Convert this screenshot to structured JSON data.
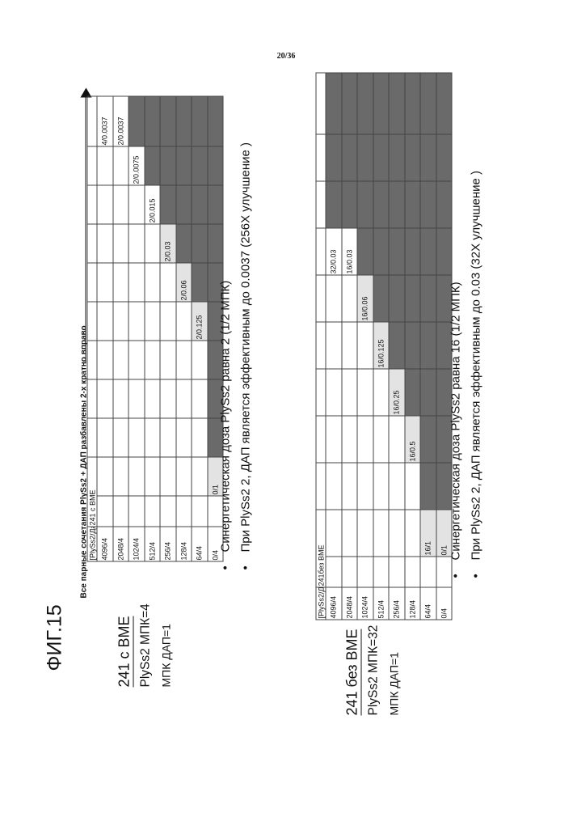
{
  "page_number": "20/36",
  "figure_title": "ФИГ.15",
  "top_note": "Все парные сочетания PlySs2 + ДАП разбавлены 2-х кратно вправо",
  "panel1": {
    "label_title": "241   с    BME",
    "label_line1": "PlySs2 МПК=4",
    "label_line2": "МПК ДАП=1",
    "corner_header": "[PlySs2/Дап]",
    "col_header": "241   с    BME",
    "row_labels": [
      "4096/4",
      "2048/4",
      "1024/4",
      "512/4",
      "256/4",
      "128/4",
      "64/4",
      "0/4"
    ],
    "cells": [
      {
        "r": 0,
        "c": 11,
        "text": "4/0.0037"
      },
      {
        "r": 1,
        "c": 11,
        "text": "2/0.0037"
      },
      {
        "r": 2,
        "c": 10,
        "text": "2/0.0075"
      },
      {
        "r": 3,
        "c": 9,
        "text": "2/0.015"
      },
      {
        "r": 4,
        "c": 8,
        "text": "2/0.03"
      },
      {
        "r": 5,
        "c": 7,
        "text": "2/0.06"
      },
      {
        "r": 6,
        "c": 6,
        "text": "2/0.125"
      },
      {
        "r": 7,
        "c": 2,
        "text": "0/1"
      }
    ],
    "bullets": [
      "Синергетическая доза PlySs2 равна 2 (1/2 МПК)",
      "При PlySs2 2, ДАП является эффективным до 0.0037 (256X улучшение )"
    ]
  },
  "panel2": {
    "label_title": "241 без BME",
    "label_line1": "PlySs2 МПК=32",
    "label_line2": "МПК ДАП=1",
    "corner_header": "[PlySs2/Дап]",
    "col_header": "241без BME",
    "row_labels": [
      "4096/4",
      "2048/4",
      "1024/4",
      "512/4",
      "256/4",
      "128/4",
      "64/4",
      "0/4"
    ],
    "cells": [
      {
        "r": 0,
        "c": 8,
        "text": "32/0.03"
      },
      {
        "r": 1,
        "c": 8,
        "text": "16/0.03"
      },
      {
        "r": 2,
        "c": 7,
        "text": "16/0.06"
      },
      {
        "r": 3,
        "c": 6,
        "text": "16/0.125"
      },
      {
        "r": 4,
        "c": 5,
        "text": "16/0.25"
      },
      {
        "r": 5,
        "c": 4,
        "text": "16/0.5"
      },
      {
        "r": 6,
        "c": 2,
        "text": "16/1"
      },
      {
        "r": 7,
        "c": 2,
        "text": "0/1"
      }
    ],
    "bullets": [
      "Синергетическая доза PlySs2 равна 16 (1/2 МПК)",
      "При PlySs2 2, ДАП является эффективным до 0.03 (32X улучшение )"
    ]
  },
  "chart_data": [
    {
      "type": "table",
      "title": "241   с    BME",
      "rows": [
        "4096/4",
        "2048/4",
        "1024/4",
        "512/4",
        "256/4",
        "128/4",
        "64/4",
        "0/4"
      ],
      "labeled_cells": [
        "4/0.0037",
        "2/0.0037",
        "2/0.0075",
        "2/0.015",
        "2/0.03",
        "2/0.06",
        "2/0.125",
        "0/1"
      ]
    },
    {
      "type": "table",
      "title": "241без BME",
      "rows": [
        "4096/4",
        "2048/4",
        "1024/4",
        "512/4",
        "256/4",
        "128/4",
        "64/4",
        "0/4"
      ],
      "labeled_cells": [
        "32/0.03",
        "16/0.03",
        "16/0.06",
        "16/0.125",
        "16/0.25",
        "16/0.5",
        "16/1",
        "0/1"
      ]
    }
  ],
  "colors": {
    "dark_cell": "#6a6a6a",
    "light_cell": "#e3e3e3",
    "line": "#444444"
  }
}
